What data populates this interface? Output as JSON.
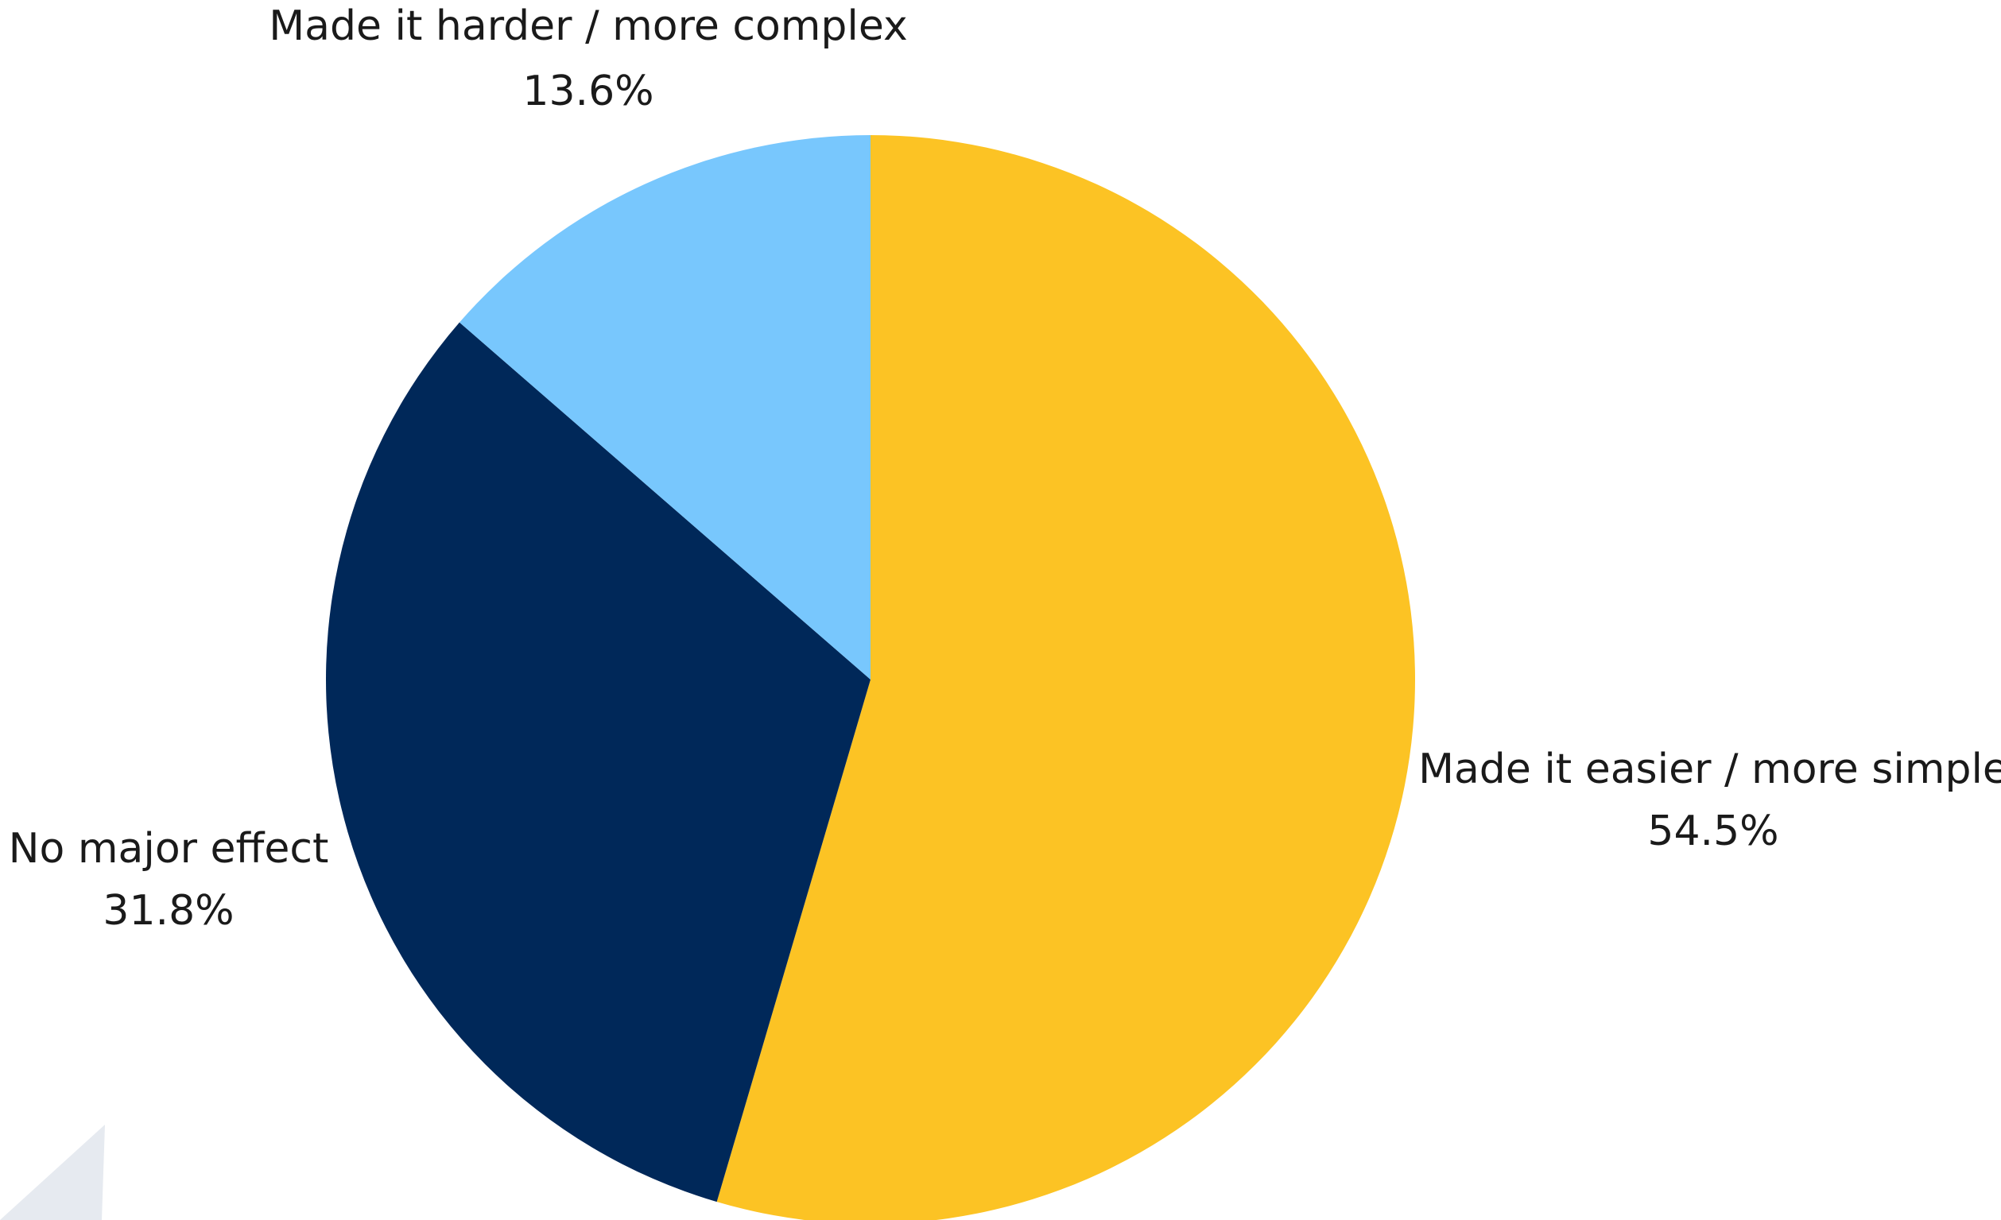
{
  "chart_data": {
    "type": "pie",
    "title": "",
    "slices": [
      {
        "label": "Made it easier / more simple",
        "value": 54.5,
        "value_label": "54.5%",
        "color": "#fcc324"
      },
      {
        "label": "No major effect",
        "value": 31.8,
        "value_label": "31.8%",
        "color": "#002859"
      },
      {
        "label": "Made it harder / more complex",
        "value": 13.6,
        "value_label": "13.6%",
        "color": "#78c7fd"
      }
    ],
    "start_angle_deg": 0,
    "direction": "clockwise",
    "legend": "none",
    "labels": "outside"
  }
}
